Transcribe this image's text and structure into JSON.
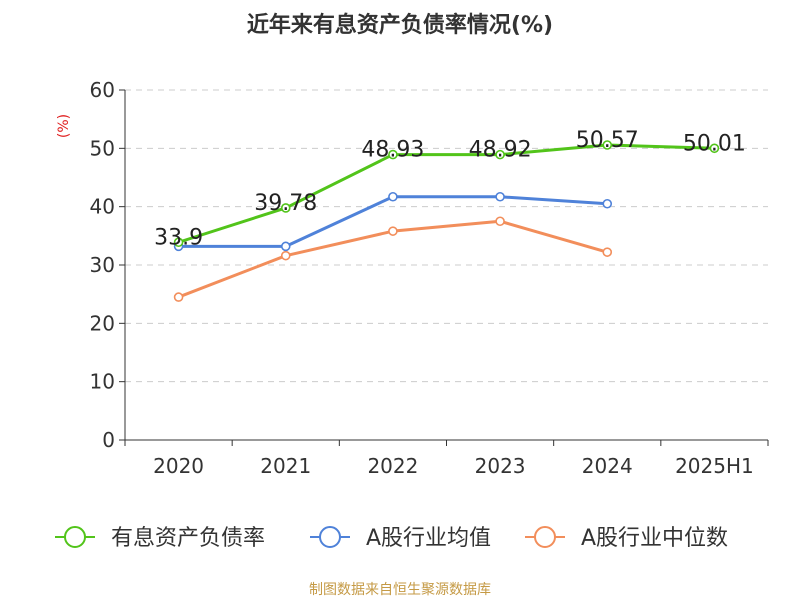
{
  "chart_data": {
    "type": "line",
    "title": "近年来有息资产负债率情况(%)",
    "ylabel": "(%)",
    "xlabel": "",
    "categories": [
      "2020",
      "2021",
      "2022",
      "2023",
      "2024",
      "2025H1"
    ],
    "ylim": [
      0,
      60
    ],
    "yticks": [
      0,
      10,
      20,
      30,
      40,
      50,
      60
    ],
    "grid": true,
    "legend_position": "bottom",
    "series": [
      {
        "name": "有息资产负债率",
        "color": "#52c41a",
        "values": [
          33.9,
          39.78,
          48.93,
          48.92,
          50.57,
          50.01
        ],
        "labels": [
          "33.9",
          "39.78",
          "48.93",
          "48.92",
          "50.57",
          "50.01"
        ]
      },
      {
        "name": "A股行业均值",
        "color": "#4f82d9",
        "values": [
          33.2,
          33.2,
          41.7,
          41.7,
          40.5,
          null
        ]
      },
      {
        "name": "A股行业中位数",
        "color": "#f28e5b",
        "values": [
          24.5,
          31.6,
          35.8,
          37.5,
          32.2,
          null
        ]
      }
    ],
    "source": "制图数据来自恒生聚源数据库"
  }
}
